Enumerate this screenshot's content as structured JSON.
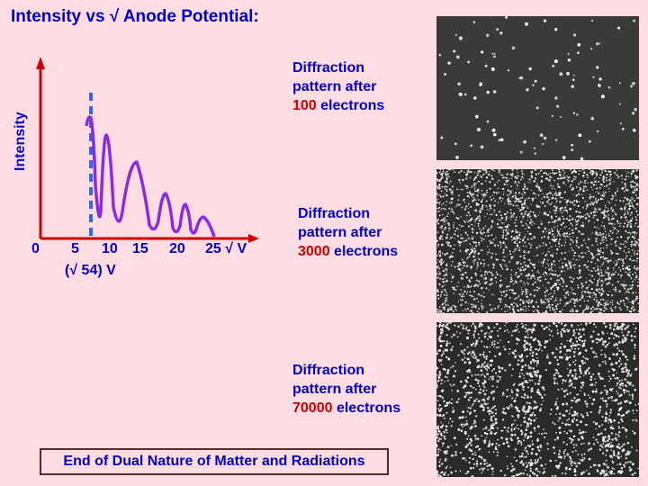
{
  "title": "Intensity vs √ Anode Potential:",
  "y_axis_label": "Intensity",
  "x_ticks": [
    "0",
    "5",
    "10",
    "15",
    "20",
    "25 √ V"
  ],
  "x_note": "(√ 54) V",
  "captions": [
    {
      "line1": "Diffraction",
      "line2": "pattern after",
      "number": "100",
      "unit": "electrons"
    },
    {
      "line1": "Diffraction",
      "line2": "pattern after",
      "number": "3000",
      "unit": "electrons"
    },
    {
      "line1": "Diffraction",
      "line2": "pattern after",
      "number": "70000",
      "unit": "electrons"
    }
  ],
  "footer": "End of Dual Nature of Matter and Radiations",
  "colors": {
    "background": "#ffdde3",
    "text": "#0000cc",
    "number": "#cc0000",
    "curve": "#8a2be2",
    "axis": "#cc0000",
    "marker": "#3366ee"
  }
}
